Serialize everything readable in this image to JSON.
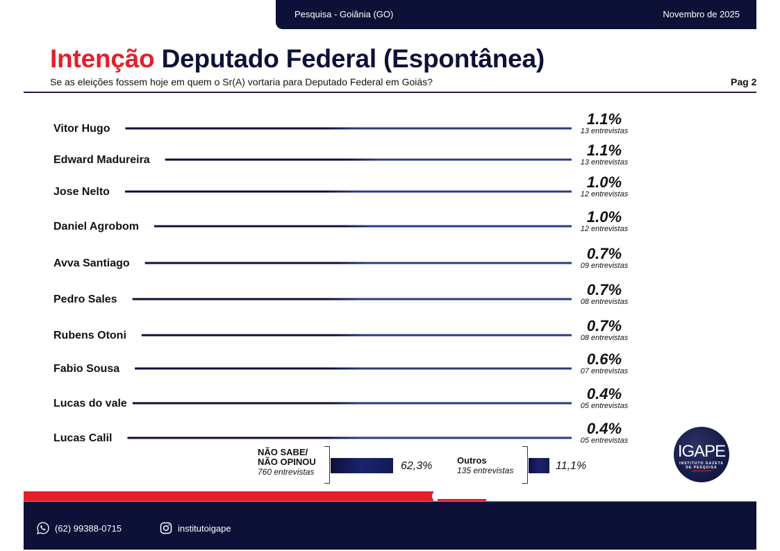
{
  "header": {
    "location": "Pesquisa - Goiânia (GO)",
    "date": "Novembro de 2025"
  },
  "title": {
    "highlight": "Intenção",
    "rest": "Deputado Federal (Espontânea)",
    "question": "Se as eleições fossem hoje em quem o Sr(A) vortaria para Deputado Federal em Goiás?",
    "page": "Pag 2"
  },
  "colors": {
    "brand_red": "#e51f2a",
    "brand_navy": "#0d1137",
    "bar_blue": "#2b3a85"
  },
  "chart_data": {
    "type": "bar",
    "orientation": "horizontal",
    "title": "Intenção Deputado Federal (Espontânea)",
    "xlabel": "",
    "ylabel": "",
    "count_suffix": "entrevistas",
    "categories": [
      "Vitor Hugo",
      "Edward Madureira",
      "Jose Nelto",
      "Daniel Agrobom",
      "Avva Santiago",
      "Pedro Sales",
      "Rubens Otoni",
      "Fabio Sousa",
      "Lucas do vale",
      "Lucas Calil"
    ],
    "values": [
      1.1,
      1.1,
      1.0,
      1.0,
      0.7,
      0.7,
      0.7,
      0.6,
      0.4,
      0.4
    ],
    "value_labels": [
      "1.1%",
      "1.1%",
      "1.0%",
      "1.0%",
      "0.7%",
      "0.7%",
      "0.7%",
      "0.6%",
      "0.4%",
      "0.4%"
    ],
    "counts": [
      "13",
      "13",
      "12",
      "12",
      "09",
      "08",
      "08",
      "07",
      "05",
      "05"
    ],
    "extras": [
      {
        "label_line1": "NÃO SABE/",
        "label_line2": "NÃO OPINOU",
        "count_label": "760 entrevistas",
        "value": 62.3,
        "value_label": "62,3%"
      },
      {
        "label_line1": "Outros",
        "label_line2": "",
        "count_label": "135 entrevistas",
        "value": 11.1,
        "value_label": "11,1%"
      }
    ]
  },
  "logo": {
    "name": "IGAPE",
    "tagline1": "INSTITUTO GAZETA",
    "tagline2": "DE PESQUISA"
  },
  "footer": {
    "phone_icon": "whatsapp-icon",
    "phone": "(62) 99388-0715",
    "social_icon": "instagram-icon",
    "social": "institutoigape"
  }
}
